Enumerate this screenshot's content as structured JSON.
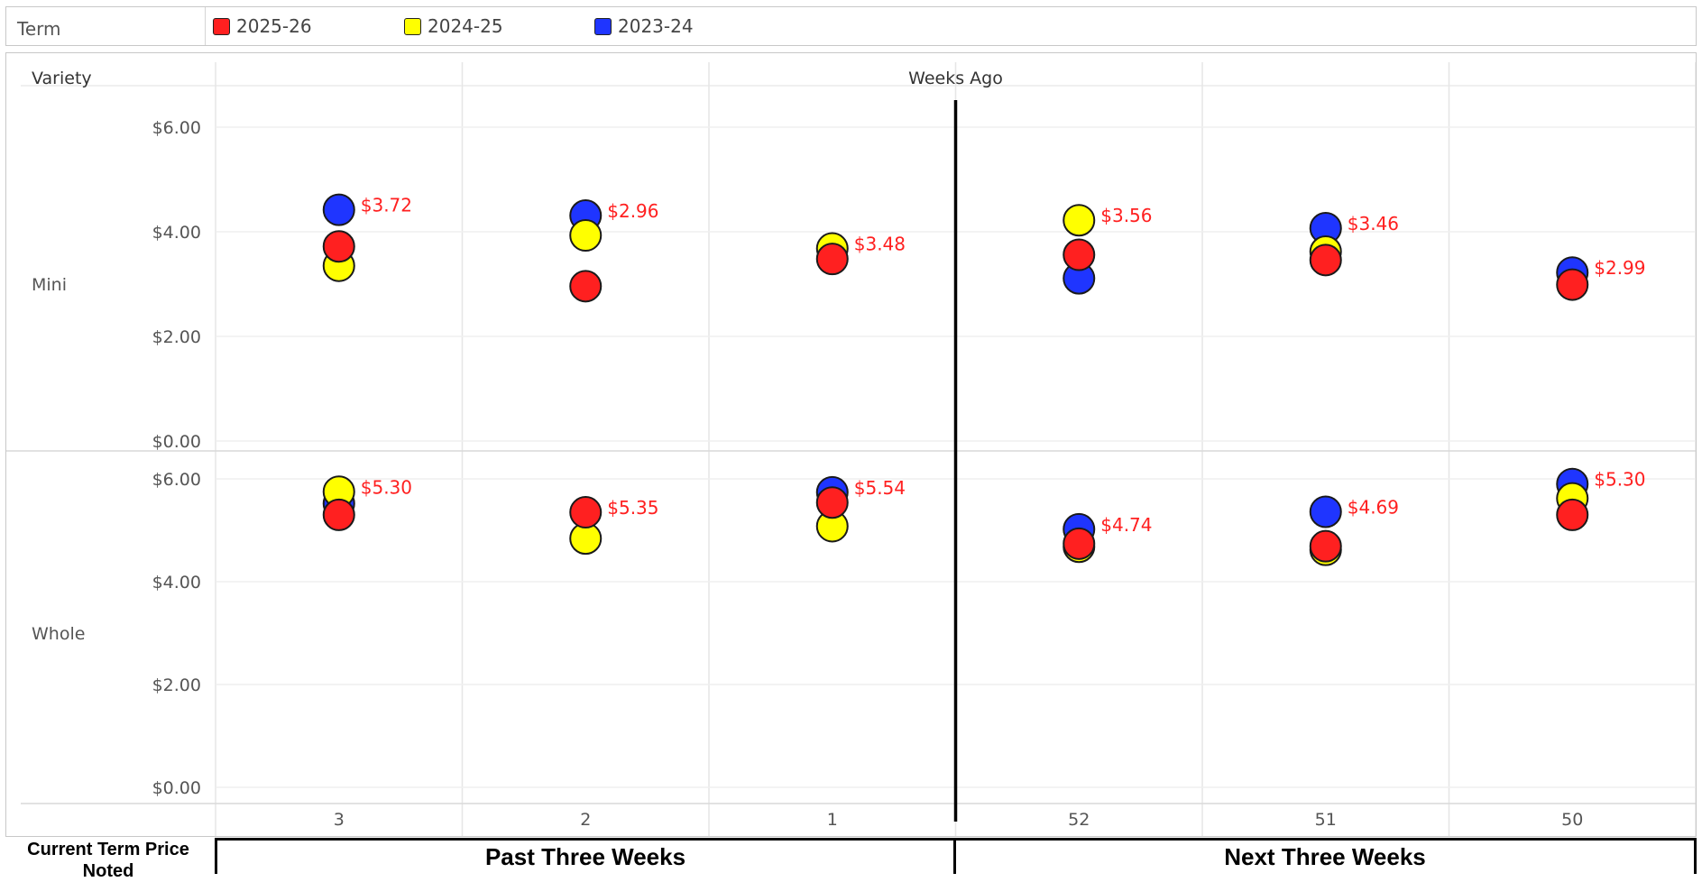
{
  "legend": {
    "title": "Term",
    "items": [
      {
        "label": "2025-26",
        "color": "#ff2020"
      },
      {
        "label": "2024-25",
        "color": "#ffff00"
      },
      {
        "label": "2023-24",
        "color": "#1f35ff"
      }
    ]
  },
  "chart_data": {
    "type": "scatter",
    "row_header": "Variety",
    "column_header": "Weeks Ago",
    "categories": [
      "3",
      "2",
      "1",
      "52",
      "51",
      "50"
    ],
    "y_ticks": [
      "$0.00",
      "$2.00",
      "$4.00",
      "$6.00"
    ],
    "ylim": [
      0,
      6.5
    ],
    "panels": [
      {
        "name": "Mini",
        "series": [
          {
            "name": "2025-26",
            "values": [
              3.72,
              2.96,
              3.48,
              3.56,
              3.46,
              2.99
            ]
          },
          {
            "name": "2024-25",
            "values": [
              3.35,
              3.93,
              3.68,
              4.22,
              3.62,
              null
            ]
          },
          {
            "name": "2023-24",
            "values": [
              4.42,
              4.31,
              null,
              3.11,
              4.07,
              3.22
            ]
          }
        ],
        "labels": [
          "$3.72",
          "$2.96",
          "$3.48",
          "$3.56",
          "$3.46",
          "$2.99"
        ]
      },
      {
        "name": "Whole",
        "series": [
          {
            "name": "2025-26",
            "values": [
              5.3,
              5.35,
              5.54,
              4.74,
              4.69,
              5.3
            ]
          },
          {
            "name": "2024-25",
            "values": [
              5.75,
              4.84,
              5.08,
              4.68,
              4.62,
              5.62
            ]
          },
          {
            "name": "2023-24",
            "values": [
              5.52,
              null,
              5.74,
              5.02,
              5.36,
              5.9
            ]
          }
        ],
        "labels": [
          "$5.30",
          "$5.35",
          "$5.54",
          "$4.74",
          "$4.69",
          "$5.30"
        ]
      }
    ],
    "label_color": "#ff2020",
    "grid": true
  },
  "footer": {
    "left_label": "Current Term Price Noted",
    "past_label": "Past Three Weeks",
    "next_label": "Next Three Weeks"
  }
}
